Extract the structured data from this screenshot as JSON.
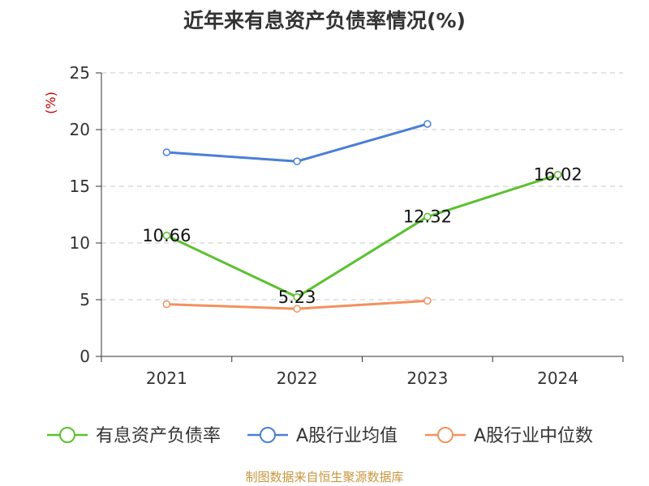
{
  "chart_data": {
    "type": "line",
    "title": "近年来有息资产负债率情况(%)",
    "ylabel": "(%)",
    "xlabel": "",
    "categories": [
      "2021",
      "2022",
      "2023",
      "2024"
    ],
    "ylim": [
      0,
      25
    ],
    "yticks": [
      0,
      5,
      10,
      15,
      20,
      25
    ],
    "grid": true,
    "legend_position": "bottom",
    "series": [
      {
        "name": "有息资产负债率",
        "color": "#5ac12e",
        "values": [
          10.66,
          5.23,
          12.32,
          16.02
        ],
        "labels": [
          "10.66",
          "5.23",
          "12.32",
          "16.02"
        ]
      },
      {
        "name": "A股行业均值",
        "color": "#4a7fd6",
        "values": [
          18.0,
          17.2,
          20.5,
          null
        ]
      },
      {
        "name": "A股行业中位数",
        "color": "#f4905e",
        "values": [
          4.6,
          4.2,
          4.9,
          null
        ]
      }
    ]
  },
  "source": "制图数据来自恒生聚源数据库"
}
